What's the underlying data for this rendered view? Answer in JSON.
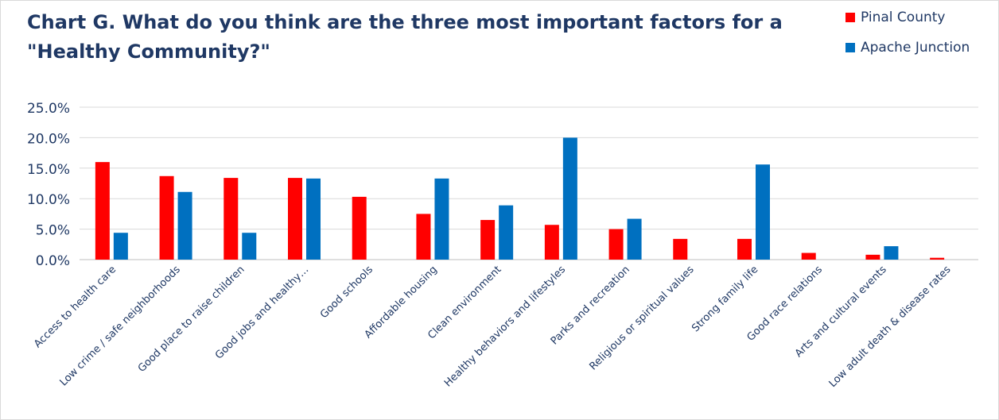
{
  "chart_data": {
    "type": "bar",
    "title_lines": [
      "Chart G. What do you think are the three most important factors for a",
      "\"Healthy Community?\""
    ],
    "categories": [
      "Access to health care",
      "Low crime / safe neighborhoods",
      "Good place to raise children",
      "Good jobs and healthy…",
      "Good schools",
      "Affordable housing",
      "Clean environment",
      "Healthy behaviors and lifestyles",
      "Parks and recreation",
      "Religious or spiritual values",
      "Strong family life",
      "Good race relations",
      "Arts and cultural events",
      "Low adult death & disease rates"
    ],
    "series": [
      {
        "name": "Pinal County",
        "color": "#ff0000",
        "values": [
          16.0,
          13.7,
          13.4,
          13.4,
          10.3,
          7.5,
          6.5,
          5.7,
          5.0,
          3.4,
          3.4,
          1.1,
          0.8,
          0.3
        ]
      },
      {
        "name": "Apache Junction",
        "color": "#0070c0",
        "values": [
          4.4,
          11.1,
          4.4,
          13.3,
          0.0,
          13.3,
          8.9,
          20.0,
          6.7,
          0.0,
          15.6,
          0.0,
          2.2,
          0.0
        ]
      }
    ],
    "y_ticks": [
      "0.0%",
      "5.0%",
      "10.0%",
      "15.0%",
      "20.0%",
      "25.0%"
    ],
    "ylim": [
      0,
      25
    ],
    "grid": true,
    "legend_position": "top-right",
    "text_color": "#1f3864",
    "grid_color": "#d9d9d9"
  }
}
